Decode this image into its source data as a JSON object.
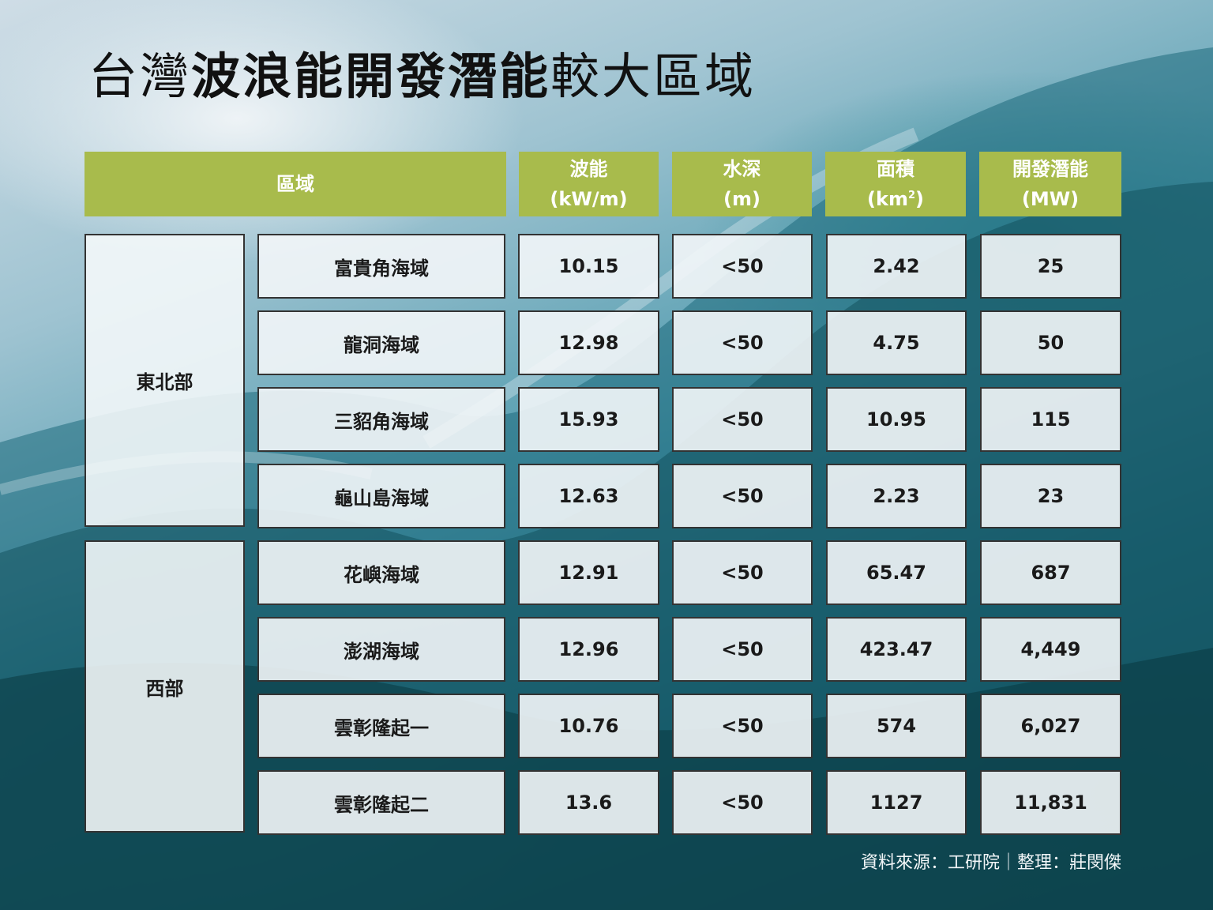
{
  "title": {
    "part1": "台灣",
    "part2": "波浪能開發潛能",
    "part3": "較大區域"
  },
  "headers": {
    "region": "區域",
    "wave": {
      "line1": "波能",
      "line2": "(kW/m)"
    },
    "depth": {
      "line1": "水深",
      "line2": "(m)"
    },
    "area": {
      "line1": "面積",
      "line2_pre": "(km",
      "line2_sup": "2",
      "line2_post": ")"
    },
    "potential": {
      "line1": "開發潛能",
      "line2": "(MW)"
    }
  },
  "groups": [
    {
      "name": "東北部",
      "rows": 4
    },
    {
      "name": "西部",
      "rows": 4
    }
  ],
  "rows": [
    {
      "name": "富貴角海域",
      "wave": "10.15",
      "depth": "<50",
      "area": "2.42",
      "potential": "25"
    },
    {
      "name": "龍洞海域",
      "wave": "12.98",
      "depth": "<50",
      "area": "4.75",
      "potential": "50"
    },
    {
      "name": "三貂角海域",
      "wave": "15.93",
      "depth": "<50",
      "area": "10.95",
      "potential": "115"
    },
    {
      "name": "龜山島海域",
      "wave": "12.63",
      "depth": "<50",
      "area": "2.23",
      "potential": "23"
    },
    {
      "name": "花嶼海域",
      "wave": "12.91",
      "depth": "<50",
      "area": "65.47",
      "potential": "687"
    },
    {
      "name": "澎湖海域",
      "wave": "12.96",
      "depth": "<50",
      "area": "423.47",
      "potential": "4,449"
    },
    {
      "name": "雲彰隆起一",
      "wave": "10.76",
      "depth": "<50",
      "area": "574",
      "potential": "6,027"
    },
    {
      "name": "雲彰隆起二",
      "wave": "13.6",
      "depth": "<50",
      "area": "1127",
      "potential": "11,831"
    }
  ],
  "source": "資料來源：工研院｜整理：莊閔傑",
  "colors": {
    "header_bg": "#a8bb4c",
    "cell_bg": "#f3f6f8",
    "border": "#333333"
  },
  "chart_data": {
    "type": "table",
    "columns": [
      "區域",
      "",
      "波能 (kW/m)",
      "水深 (m)",
      "面積 (km2)",
      "開發潛能 (MW)"
    ],
    "rows": [
      [
        "東北部",
        "富貴角海域",
        10.15,
        "<50",
        2.42,
        25
      ],
      [
        "東北部",
        "龍洞海域",
        12.98,
        "<50",
        4.75,
        50
      ],
      [
        "東北部",
        "三貂角海域",
        15.93,
        "<50",
        10.95,
        115
      ],
      [
        "東北部",
        "龜山島海域",
        12.63,
        "<50",
        2.23,
        23
      ],
      [
        "西部",
        "花嶼海域",
        12.91,
        "<50",
        65.47,
        687
      ],
      [
        "西部",
        "澎湖海域",
        12.96,
        "<50",
        423.47,
        4449
      ],
      [
        "西部",
        "雲彰隆起一",
        10.76,
        "<50",
        574,
        6027
      ],
      [
        "西部",
        "雲彰隆起二",
        13.6,
        "<50",
        1127,
        11831
      ]
    ]
  }
}
